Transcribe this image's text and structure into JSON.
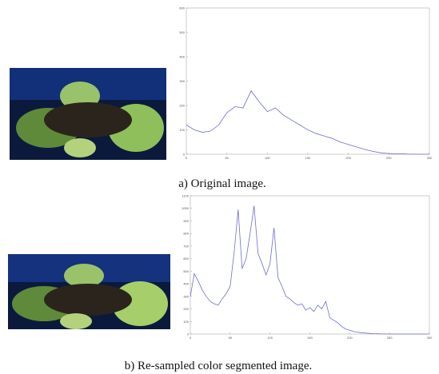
{
  "captions": [
    "a) Original image.",
    "b) Re-sampled color segmented image."
  ],
  "chart_data": [
    {
      "type": "line",
      "color": "#6b6bd6",
      "x": [
        0,
        10,
        20,
        30,
        40,
        50,
        60,
        70,
        80,
        90,
        100,
        110,
        120,
        130,
        140,
        150,
        160,
        170,
        180,
        190,
        200,
        210,
        220,
        230,
        240,
        250,
        260,
        270,
        280,
        290,
        300
      ],
      "values": [
        120,
        100,
        90,
        95,
        120,
        170,
        195,
        190,
        260,
        215,
        175,
        190,
        160,
        140,
        120,
        100,
        85,
        75,
        65,
        50,
        40,
        30,
        20,
        12,
        6,
        3,
        2,
        1,
        0,
        0,
        0
      ],
      "xlim": [
        0,
        300
      ],
      "xticks": [
        0,
        50,
        100,
        150,
        200,
        250,
        300
      ],
      "ylim": [
        0,
        600
      ],
      "yticks": [
        0,
        100,
        200,
        300,
        400,
        500,
        600
      ]
    },
    {
      "type": "line",
      "color": "#6b6bd6",
      "x": [
        0,
        5,
        10,
        15,
        20,
        25,
        30,
        35,
        40,
        45,
        50,
        55,
        60,
        65,
        70,
        75,
        80,
        85,
        90,
        95,
        100,
        105,
        110,
        115,
        120,
        125,
        130,
        135,
        140,
        145,
        150,
        155,
        160,
        165,
        170,
        175,
        180,
        185,
        190,
        195,
        200,
        205,
        210,
        215,
        220,
        225,
        230,
        235,
        240,
        245,
        250,
        255,
        260,
        265,
        270,
        275,
        280,
        285,
        290,
        295,
        300
      ],
      "values": [
        300,
        480,
        420,
        350,
        300,
        260,
        240,
        230,
        280,
        320,
        380,
        650,
        990,
        520,
        600,
        800,
        1020,
        640,
        560,
        470,
        560,
        845,
        450,
        380,
        300,
        280,
        250,
        230,
        240,
        190,
        210,
        180,
        230,
        200,
        260,
        130,
        110,
        90,
        60,
        40,
        30,
        20,
        15,
        10,
        8,
        5,
        3,
        2,
        1,
        1,
        0,
        0,
        0,
        0,
        0,
        0,
        0,
        0,
        0,
        0,
        0
      ],
      "xlim": [
        0,
        300
      ],
      "xticks": [
        0,
        50,
        100,
        150,
        200,
        250,
        300
      ],
      "ylim": [
        0,
        1100
      ],
      "yticks": [
        0,
        100,
        200,
        300,
        400,
        500,
        600,
        700,
        800,
        900,
        1000,
        1100
      ]
    }
  ]
}
